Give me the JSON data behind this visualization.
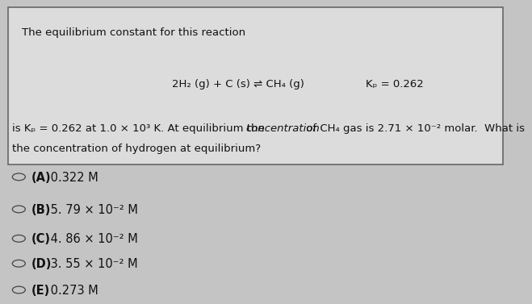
{
  "bg_color": "#c4c4c4",
  "box_bg": "#dcdcdc",
  "box_border": "#666666",
  "text_color": "#111111",
  "title": "The equilibrium constant for this reaction",
  "reaction": "2H₂ (g) + C (s) ⇌ CH₄ (g)",
  "kp_label": "Kₚ = 0.262",
  "body1a": "is Kₚ = 0.262 at 1.0 × 10³ K. At equilibrium the ",
  "body1b": "concentration",
  "body1c": " of CH₄ gas is 2.71 × 10⁻² molar.  What is",
  "body2": "the concentration of hydrogen at equilibrium?",
  "options": [
    [
      "(A)",
      " 0.322 M"
    ],
    [
      "(B)",
      " 5. 79 × 10⁻² M"
    ],
    [
      "(C)",
      " 4. 86 × 10⁻² M"
    ],
    [
      "(D)",
      " 3. 55 × 10⁻² M"
    ],
    [
      "(E)",
      " 0.273 M"
    ]
  ],
  "font_size": 9.5,
  "font_size_opts": 10.5
}
